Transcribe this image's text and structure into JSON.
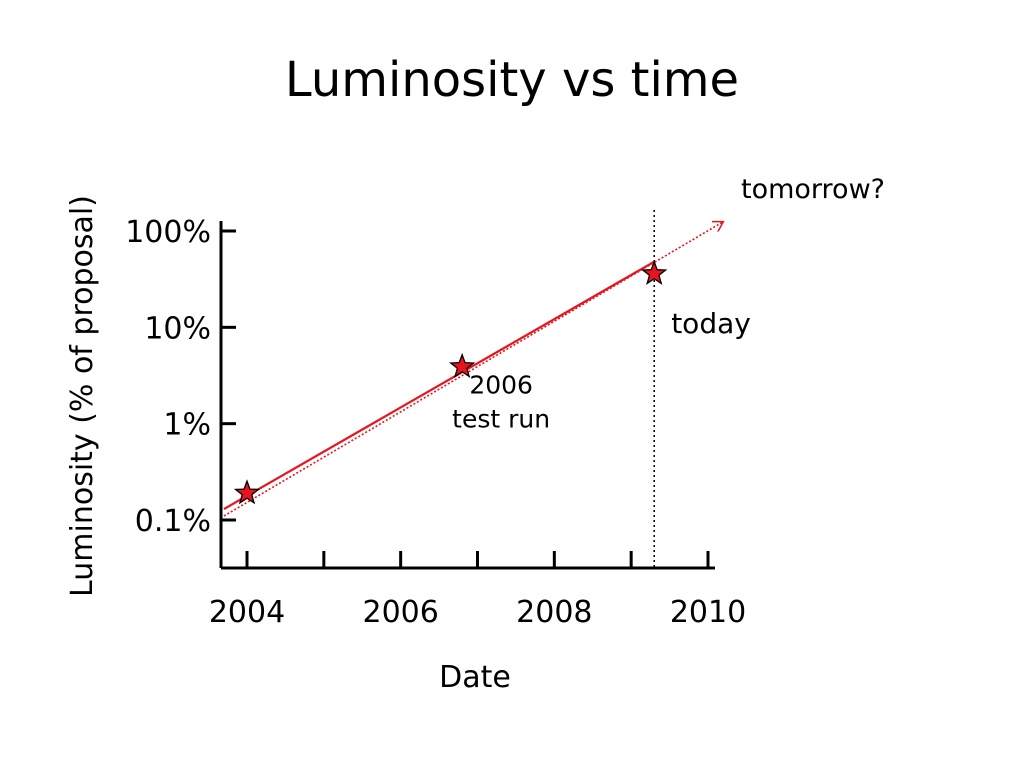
{
  "slide": {
    "title": "Luminosity vs time"
  },
  "chart_data": {
    "type": "scatter",
    "title": "Luminosity vs time",
    "xlabel": "Date",
    "ylabel": "Luminosity (% of proposal)",
    "yscale": "log",
    "xlim": [
      2003.7,
      2010.1
    ],
    "ylim": [
      0.03,
      150
    ],
    "x_ticks": [
      2004,
      2005,
      2006,
      2007,
      2008,
      2009,
      2010
    ],
    "x_tick_labels": [
      {
        "value": 2004,
        "label": "2004"
      },
      {
        "value": 2006,
        "label": "2006"
      },
      {
        "value": 2008,
        "label": "2008"
      },
      {
        "value": 2010,
        "label": "2010"
      }
    ],
    "y_tick_labels": [
      {
        "value": 100,
        "label": "100%"
      },
      {
        "value": 10,
        "label": "10%"
      },
      {
        "value": 1,
        "label": "1%"
      },
      {
        "value": 0.1,
        "label": "0.1%"
      }
    ],
    "points": [
      {
        "x": 2004.0,
        "y": 0.19
      },
      {
        "x": 2006.8,
        "y": 3.9
      },
      {
        "x": 2009.3,
        "y": 36
      }
    ],
    "fit_line": {
      "x": [
        2003.7,
        2009.3
      ],
      "y": [
        0.13,
        48
      ],
      "color": "#e8141e",
      "style": "solid"
    },
    "extrapolation": {
      "x": [
        2003.7,
        2010.2
      ],
      "y": [
        0.11,
        125
      ],
      "color": "#e8141e",
      "style": "dotted",
      "label": "tomorrow?"
    },
    "today_line": {
      "x": 2009.3,
      "label": "today",
      "style": "dotted"
    },
    "annotations": [
      {
        "text_lines": [
          "2006",
          "test run"
        ],
        "x": 2006.8,
        "y": 3.9
      }
    ],
    "marker": {
      "shape": "star",
      "fill": "#e8141e",
      "stroke": "#000000"
    },
    "grid": false
  }
}
